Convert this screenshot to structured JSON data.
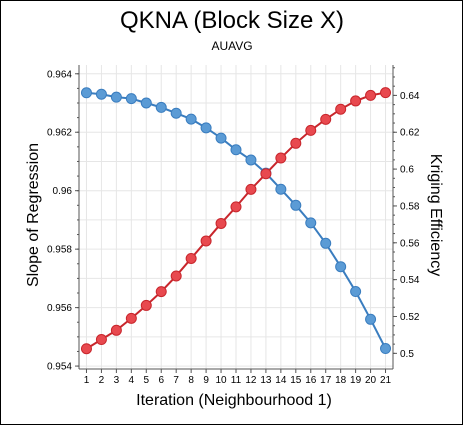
{
  "chart_data": {
    "type": "line",
    "title": "QKNA (Block Size X)",
    "subtitle": "AUAVG",
    "xlabel": "Iteration (Neighbourhood 1)",
    "ylabel_left": "Slope of Regression",
    "ylabel_right": "Kriging Efficiency",
    "x": [
      1,
      2,
      3,
      4,
      5,
      6,
      7,
      8,
      9,
      10,
      11,
      12,
      13,
      14,
      15,
      16,
      17,
      18,
      19,
      20,
      21
    ],
    "y_left_lim": [
      0.9539,
      0.9643
    ],
    "y_left_ticks": [
      0.954,
      0.956,
      0.958,
      0.96,
      0.962,
      0.964
    ],
    "y_left_tick_labels": [
      "0.954",
      "0.956",
      "0.958",
      "0.96",
      "0.962",
      "0.964"
    ],
    "y_right_lim": [
      0.4915,
      0.6565
    ],
    "y_right_ticks": [
      0.5,
      0.52,
      0.54,
      0.56,
      0.58,
      0.6,
      0.62,
      0.64
    ],
    "y_right_tick_labels": [
      "0.5",
      "0.52",
      "0.54",
      "0.56",
      "0.58",
      "0.6",
      "0.62",
      "0.64"
    ],
    "grid": true,
    "series": [
      {
        "axis": "left",
        "color": "#3a7dbf",
        "marker_color": "#5b9bd5",
        "values": [
          0.96335,
          0.9633,
          0.9632,
          0.96315,
          0.963,
          0.96285,
          0.96265,
          0.96245,
          0.96215,
          0.9618,
          0.9614,
          0.96105,
          0.9606,
          0.96005,
          0.9595,
          0.9589,
          0.9582,
          0.9574,
          0.95655,
          0.9556,
          0.9546
        ]
      },
      {
        "axis": "right",
        "color": "#c8262c",
        "marker_color": "#e8494f",
        "values": [
          0.5025,
          0.5075,
          0.5125,
          0.519,
          0.526,
          0.5335,
          0.542,
          0.5515,
          0.561,
          0.5705,
          0.5795,
          0.589,
          0.5975,
          0.606,
          0.614,
          0.621,
          0.627,
          0.6325,
          0.637,
          0.64,
          0.6415
        ]
      }
    ]
  }
}
